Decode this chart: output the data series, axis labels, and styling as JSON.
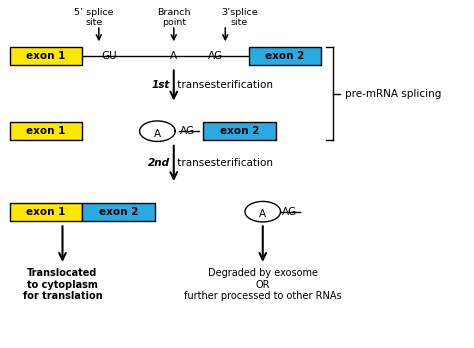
{
  "fig_width": 4.74,
  "fig_height": 3.48,
  "dpi": 100,
  "bg_color": "#ffffff",
  "yellow": "#FFE800",
  "blue": "#29ABE2",
  "black": "#000000",
  "exon1_label": "exon 1",
  "exon2_label": "exon 2",
  "splice5_label": "5’ splice\nsite",
  "branch_label": "Branch\npoint",
  "splice3_label": "3’splice\nsite",
  "step1_label": "1st",
  "step1_text": " transesterification",
  "step2_label": "2nd",
  "step2_text": " transesterification",
  "side_label": "pre-mRNA splicing",
  "bottom_left_label": "Translocated\nto cytoplasm\nfor translation",
  "bottom_right_label": "Degraded by exosome\nOR\nfurther processed to other RNAs"
}
